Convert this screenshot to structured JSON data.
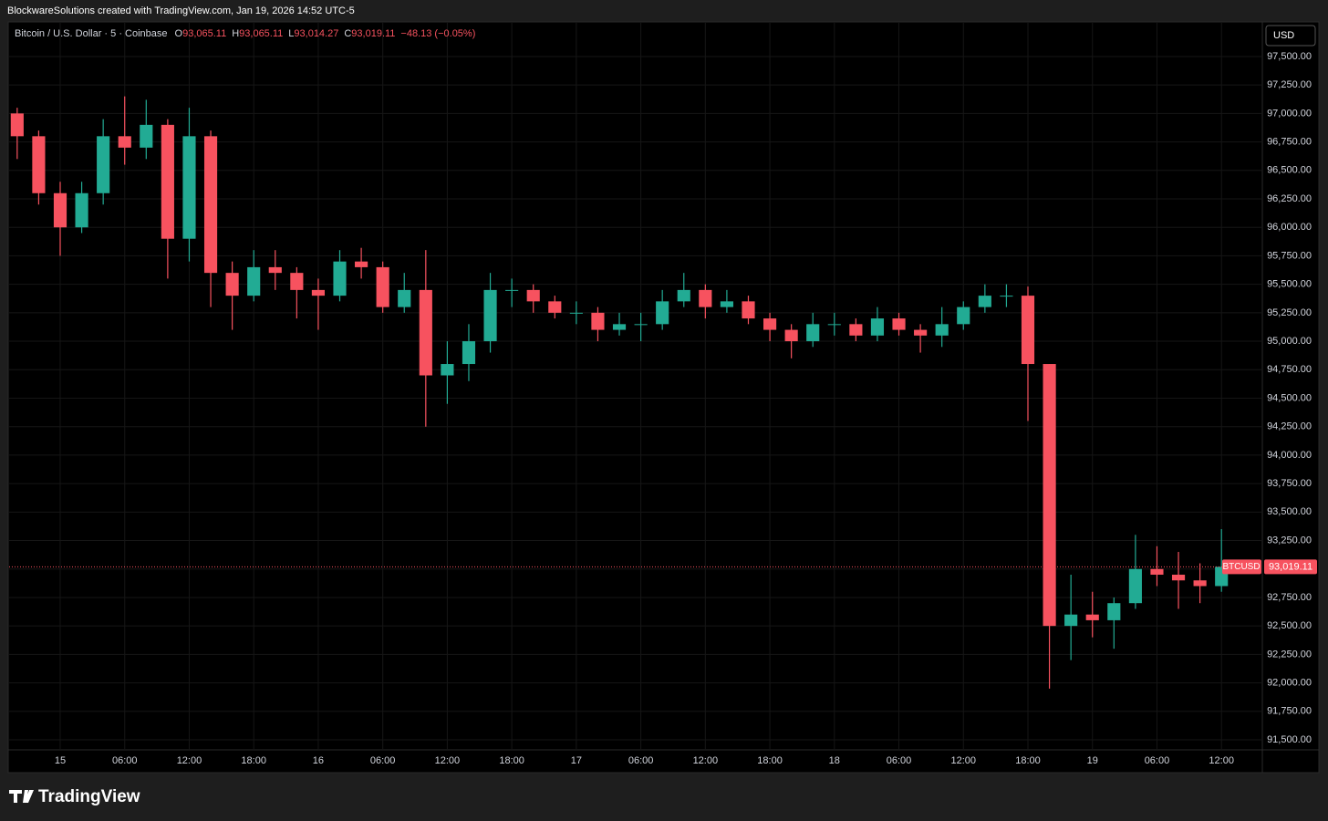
{
  "header": {
    "attribution": "BlockwareSolutions created with TradingView.com, Jan 19, 2026 14:52 UTC-5"
  },
  "footer": {
    "brand": "TradingView"
  },
  "chart_data": {
    "type": "candlestick",
    "legend": {
      "symbol": "Bitcoin / U.S. Dollar · 5 · Coinbase",
      "items": [
        {
          "key": "O",
          "value": "93,065.11"
        },
        {
          "key": "H",
          "value": "93,065.11"
        },
        {
          "key": "L",
          "value": "93,014.27"
        },
        {
          "key": "C",
          "value": "93,019.11"
        }
      ],
      "change": "−48.13 (−0.05%)"
    },
    "currency": "USD",
    "up_color": "#22ab94",
    "down_color": "#f7525f",
    "grid": true,
    "x": [
      -4,
      -2,
      0,
      2,
      4,
      6,
      8,
      10,
      12,
      14,
      16,
      18,
      20,
      22,
      24,
      26,
      28,
      30,
      32,
      34,
      36,
      38,
      40,
      42,
      44,
      46,
      48,
      50,
      52,
      54,
      56,
      58,
      60,
      62,
      64,
      66,
      68,
      70,
      72,
      74,
      76,
      78,
      80,
      82,
      84,
      86,
      88,
      90,
      92,
      94,
      96,
      98,
      100,
      102,
      104,
      106,
      108
    ],
    "open": [
      97000,
      96800,
      96300,
      96000,
      96300,
      96800,
      96700,
      96900,
      95900,
      96800,
      95600,
      95400,
      95650,
      95600,
      95450,
      95400,
      95700,
      95650,
      95300,
      95450,
      94700,
      94800,
      95000,
      95450,
      95450,
      95350,
      95250,
      95250,
      95100,
      95150,
      95150,
      95350,
      95450,
      95300,
      95350,
      95200,
      95100,
      95000,
      95150,
      95150,
      95050,
      95200,
      95100,
      95050,
      95150,
      95300,
      95400,
      95400,
      94800,
      92500,
      92600,
      92550,
      92700,
      93000,
      92950,
      92900,
      92850
    ],
    "high": [
      97050,
      96850,
      96400,
      96400,
      96950,
      97150,
      97120,
      96950,
      97050,
      96850,
      95700,
      95800,
      95800,
      95650,
      95550,
      95800,
      95820,
      95700,
      95600,
      95800,
      95000,
      95150,
      95600,
      95550,
      95500,
      95400,
      95350,
      95300,
      95250,
      95250,
      95450,
      95600,
      95500,
      95450,
      95400,
      95250,
      95150,
      95250,
      95250,
      95200,
      95300,
      95250,
      95150,
      95300,
      95350,
      95500,
      95500,
      95480,
      94800,
      92950,
      92800,
      92750,
      93300,
      93200,
      93150,
      93050,
      93350
    ],
    "low": [
      96600,
      96200,
      95750,
      95950,
      96200,
      96550,
      96600,
      95550,
      95700,
      95300,
      95100,
      95350,
      95450,
      95200,
      95100,
      95350,
      95550,
      95250,
      95250,
      94250,
      94450,
      94650,
      94900,
      95300,
      95250,
      95200,
      95150,
      95000,
      95050,
      95000,
      95100,
      95300,
      95200,
      95250,
      95150,
      95000,
      94850,
      94950,
      95050,
      95000,
      95000,
      95050,
      94900,
      94950,
      95100,
      95250,
      95300,
      94300,
      91950,
      92200,
      92400,
      92300,
      92650,
      92850,
      92650,
      92700,
      92800
    ],
    "close": [
      96800,
      96300,
      96000,
      96300,
      96800,
      96700,
      96900,
      95900,
      96800,
      95600,
      95400,
      95650,
      95600,
      95450,
      95400,
      95700,
      95650,
      95300,
      95450,
      94700,
      94800,
      95000,
      95450,
      95450,
      95350,
      95250,
      95250,
      95100,
      95150,
      95150,
      95350,
      95450,
      95300,
      95350,
      95200,
      95100,
      95000,
      95150,
      95150,
      95050,
      95200,
      95100,
      95050,
      95150,
      95300,
      95400,
      95400,
      94800,
      92500,
      92600,
      92550,
      92700,
      93000,
      92950,
      92900,
      92850,
      93019.11
    ],
    "last_price": {
      "value": 93019.11,
      "label": "93,019.11"
    },
    "last_price_symbol": "BTCUSD",
    "xlim": [
      -4.75,
      111.8
    ],
    "ylim": [
      91412,
      97804
    ],
    "xticks": [
      {
        "value": 0,
        "label": "15"
      },
      {
        "value": 6,
        "label": "06:00"
      },
      {
        "value": 12,
        "label": "12:00"
      },
      {
        "value": 18,
        "label": "18:00"
      },
      {
        "value": 24,
        "label": "16"
      },
      {
        "value": 30,
        "label": "06:00"
      },
      {
        "value": 36,
        "label": "12:00"
      },
      {
        "value": 42,
        "label": "18:00"
      },
      {
        "value": 48,
        "label": "17"
      },
      {
        "value": 54,
        "label": "06:00"
      },
      {
        "value": 60,
        "label": "12:00"
      },
      {
        "value": 66,
        "label": "18:00"
      },
      {
        "value": 72,
        "label": "18"
      },
      {
        "value": 78,
        "label": "06:00"
      },
      {
        "value": 84,
        "label": "12:00"
      },
      {
        "value": 90,
        "label": "18:00"
      },
      {
        "value": 96,
        "label": "19"
      },
      {
        "value": 102,
        "label": "06:00"
      },
      {
        "value": 108,
        "label": "12:00"
      }
    ],
    "yticks": [
      {
        "value": 91500,
        "label": "91,500.00"
      },
      {
        "value": 91750,
        "label": "91,750.00"
      },
      {
        "value": 92000,
        "label": "92,000.00"
      },
      {
        "value": 92250,
        "label": "92,250.00"
      },
      {
        "value": 92500,
        "label": "92,500.00"
      },
      {
        "value": 92750,
        "label": "92,750.00"
      },
      {
        "value": 93000,
        "label": "93,000.00"
      },
      {
        "value": 93250,
        "label": "93,250.00"
      },
      {
        "value": 93500,
        "label": "93,500.00"
      },
      {
        "value": 93750,
        "label": "93,750.00"
      },
      {
        "value": 94000,
        "label": "94,000.00"
      },
      {
        "value": 94250,
        "label": "94,250.00"
      },
      {
        "value": 94500,
        "label": "94,500.00"
      },
      {
        "value": 94750,
        "label": "94,750.00"
      },
      {
        "value": 95000,
        "label": "95,000.00"
      },
      {
        "value": 95250,
        "label": "95,250.00"
      },
      {
        "value": 95500,
        "label": "95,500.00"
      },
      {
        "value": 95750,
        "label": "95,750.00"
      },
      {
        "value": 96000,
        "label": "96,000.00"
      },
      {
        "value": 96250,
        "label": "96,250.00"
      },
      {
        "value": 96500,
        "label": "96,500.00"
      },
      {
        "value": 96750,
        "label": "96,750.00"
      },
      {
        "value": 97000,
        "label": "97,000.00"
      },
      {
        "value": 97250,
        "label": "97,250.00"
      },
      {
        "value": 97500,
        "label": "97,500.00"
      }
    ]
  }
}
